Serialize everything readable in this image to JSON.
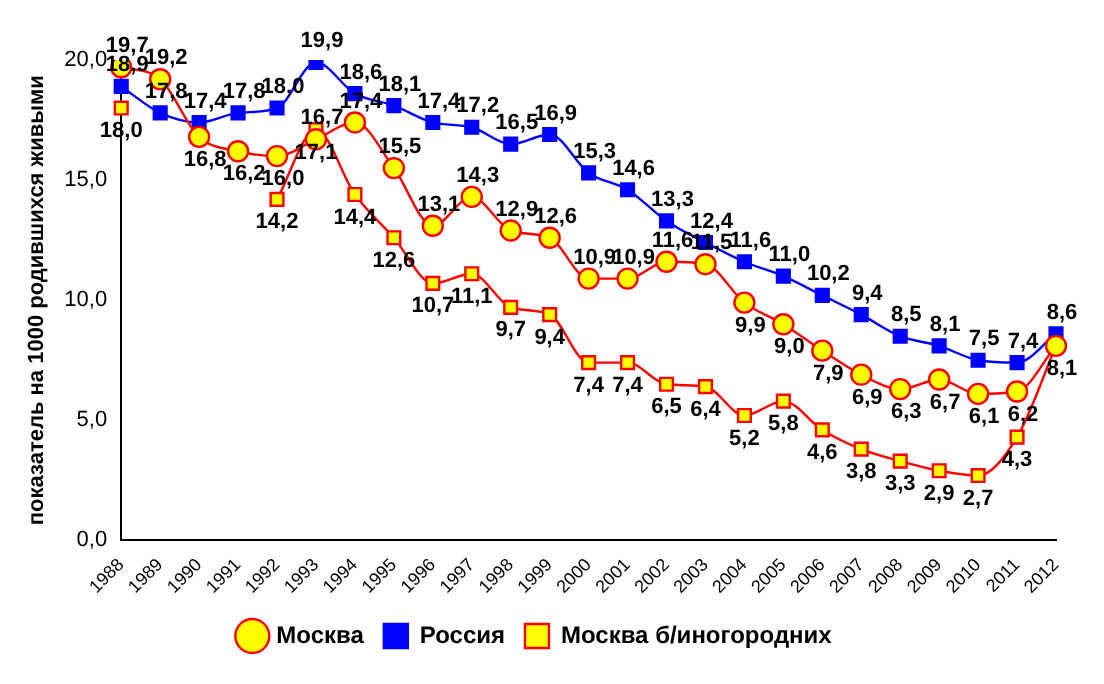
{
  "chart_data": {
    "type": "line",
    "ylabel": "показатель на 1000 родившихся живыми",
    "categories": [
      "1988",
      "1989",
      "1990",
      "1991",
      "1992",
      "1993",
      "1994",
      "1995",
      "1996",
      "1997",
      "1998",
      "1999",
      "2000",
      "2001",
      "2002",
      "2003",
      "2004",
      "2005",
      "2006",
      "2007",
      "2008",
      "2009",
      "2010",
      "2011",
      "2012"
    ],
    "ylim": [
      0,
      20
    ],
    "yticks": [
      {
        "value": 0,
        "label": "0,0"
      },
      {
        "value": 5,
        "label": "5,0"
      },
      {
        "value": 10,
        "label": "10,0"
      },
      {
        "value": 15,
        "label": "15,0"
      },
      {
        "value": 20,
        "label": "20,0"
      }
    ],
    "grid": false,
    "legend": "bottom",
    "line_style": "solid",
    "series": [
      {
        "name": "Москва",
        "color": "#ff0000",
        "marker": "circle",
        "values": [
          19.7,
          19.2,
          16.8,
          16.2,
          16.0,
          16.7,
          17.4,
          15.5,
          13.1,
          14.3,
          12.9,
          12.6,
          10.9,
          10.9,
          11.6,
          11.5,
          9.9,
          9.0,
          7.9,
          6.9,
          6.3,
          6.7,
          6.1,
          6.2,
          8.1
        ],
        "value_labels": [
          "19,7",
          "19,2",
          "16,8",
          "16,2",
          "16,0",
          "16,7",
          "17,4",
          "15,5",
          "13,1",
          "14,3",
          "12,9",
          "12,6",
          "10,9",
          "10,9",
          "11,6",
          "11,5",
          "9,9",
          "9,0",
          "7,9",
          "6,9",
          "6,3",
          "6,7",
          "6,1",
          "6,2",
          "8,1"
        ]
      },
      {
        "name": "Россия",
        "color": "#0000ff",
        "marker": "square",
        "values": [
          18.9,
          17.8,
          17.4,
          17.8,
          18.0,
          19.9,
          18.6,
          18.1,
          17.4,
          17.2,
          16.5,
          16.9,
          15.3,
          14.6,
          13.3,
          12.4,
          11.6,
          11.0,
          10.2,
          9.4,
          8.5,
          8.1,
          7.5,
          7.4,
          8.6
        ],
        "value_labels": [
          "18,9",
          "17,8",
          "17,4",
          "17,8",
          "18,0",
          "19,9",
          "18,6",
          "18,1",
          "17,4",
          "17,2",
          "16,5",
          "16,9",
          "15,3",
          "14,6",
          "13,3",
          "12,4",
          "11,6",
          "11,0",
          "10,2",
          "9,4",
          "8,5",
          "8,1",
          "7,5",
          "7,4",
          "8,6"
        ]
      },
      {
        "name": "Москва б/иногородних",
        "color": "#ff0000",
        "marker": "square",
        "values": [
          18.0,
          null,
          null,
          null,
          14.2,
          17.1,
          14.4,
          12.6,
          10.7,
          11.1,
          9.7,
          9.4,
          7.4,
          7.4,
          6.5,
          6.4,
          5.2,
          5.8,
          4.6,
          3.8,
          3.3,
          2.9,
          2.7,
          4.3,
          8.1
        ],
        "value_labels": [
          "18,0",
          null,
          null,
          null,
          "14,2",
          "17,1",
          "14,4",
          "12,6",
          "10,7",
          "11,1",
          "9,7",
          "9,4",
          "7,4",
          "7,4",
          "6,5",
          "6,4",
          "5,2",
          "5,8",
          "4,6",
          "3,8",
          "3,3",
          "2,9",
          "2,7",
          "4,3",
          null
        ]
      }
    ]
  }
}
